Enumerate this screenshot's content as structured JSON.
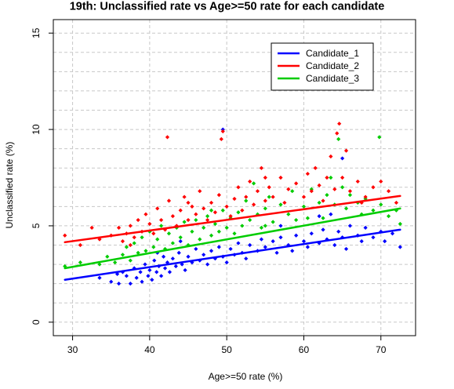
{
  "chart_data": {
    "type": "scatter",
    "title": "19th: Unclassified rate vs Age>=50 rate for each candidate",
    "xlabel": "Age>=50 rate (%)",
    "ylabel": "Unclassified rate (%)",
    "xlim": [
      27.5,
      74.5
    ],
    "ylim": [
      -0.7,
      15.7
    ],
    "x_ticks": [
      "30",
      "40",
      "50",
      "60",
      "70"
    ],
    "y_ticks": [
      "0",
      "5",
      "10",
      "15"
    ],
    "grid": true,
    "legend_position": "top-right",
    "series": [
      {
        "name": "Candidate_1",
        "color": "#0000FF",
        "fit_line": [
          [
            29,
            2.2
          ],
          [
            72.5,
            4.8
          ]
        ],
        "points": [
          [
            33.5,
            2.3
          ],
          [
            35,
            2.1
          ],
          [
            35.8,
            2.5
          ],
          [
            36,
            2.0
          ],
          [
            36.5,
            2.6
          ],
          [
            37,
            2.4
          ],
          [
            37.5,
            2.0
          ],
          [
            38,
            2.8
          ],
          [
            38.3,
            2.3
          ],
          [
            38.8,
            2.6
          ],
          [
            39,
            2.1
          ],
          [
            39.4,
            3.0
          ],
          [
            39.8,
            2.4
          ],
          [
            40,
            2.7
          ],
          [
            40.3,
            2.2
          ],
          [
            40.6,
            3.2
          ],
          [
            40.9,
            2.6
          ],
          [
            41.2,
            2.9
          ],
          [
            41.5,
            2.4
          ],
          [
            41.8,
            3.4
          ],
          [
            42,
            2.8
          ],
          [
            42.3,
            3.1
          ],
          [
            42.6,
            2.6
          ],
          [
            43,
            3.3
          ],
          [
            43.4,
            2.9
          ],
          [
            43.8,
            3.6
          ],
          [
            44.2,
            3.0
          ],
          [
            44.6,
            2.7
          ],
          [
            45,
            3.4
          ],
          [
            45.5,
            3.1
          ],
          [
            46,
            3.8
          ],
          [
            46.5,
            3.2
          ],
          [
            47,
            3.5
          ],
          [
            47.5,
            3.0
          ],
          [
            48,
            3.7
          ],
          [
            48.5,
            3.3
          ],
          [
            49,
            3.9
          ],
          [
            49.5,
            3.4
          ],
          [
            50,
            3.1
          ],
          [
            50.5,
            3.8
          ],
          [
            51,
            3.5
          ],
          [
            51.5,
            4.1
          ],
          [
            52,
            3.6
          ],
          [
            52.5,
            3.3
          ],
          [
            53,
            4.0
          ],
          [
            54,
            3.7
          ],
          [
            54.5,
            4.3
          ],
          [
            55,
            3.9
          ],
          [
            56,
            4.2
          ],
          [
            56.5,
            3.6
          ],
          [
            57,
            4.4
          ],
          [
            58,
            4.0
          ],
          [
            58.5,
            3.7
          ],
          [
            59,
            4.5
          ],
          [
            60,
            4.2
          ],
          [
            60.5,
            3.9
          ],
          [
            61,
            4.6
          ],
          [
            62,
            4.1
          ],
          [
            62.5,
            4.8
          ],
          [
            63,
            4.3
          ],
          [
            63.5,
            5.6
          ],
          [
            64,
            4.0
          ],
          [
            64.5,
            4.7
          ],
          [
            65,
            4.4
          ],
          [
            65.5,
            3.8
          ],
          [
            66,
            5.0
          ],
          [
            67,
            4.5
          ],
          [
            67.5,
            4.2
          ],
          [
            68,
            4.9
          ],
          [
            69,
            4.4
          ],
          [
            70,
            4.7
          ],
          [
            70.5,
            4.2
          ],
          [
            71.5,
            4.6
          ],
          [
            72.5,
            3.9
          ],
          [
            49.5,
            10.0
          ],
          [
            62,
            5.5
          ],
          [
            65,
            8.5
          ],
          [
            57,
            5.0
          ],
          [
            44,
            4.2
          ],
          [
            41,
            3.6
          ]
        ]
      },
      {
        "name": "Candidate_2",
        "color": "#FF0000",
        "fit_line": [
          [
            29,
            4.15
          ],
          [
            72.5,
            6.55
          ]
        ],
        "points": [
          [
            29,
            4.5
          ],
          [
            31,
            4.0
          ],
          [
            32.5,
            4.9
          ],
          [
            33.5,
            4.3
          ],
          [
            35,
            4.5
          ],
          [
            36,
            4.9
          ],
          [
            36.5,
            4.2
          ],
          [
            37,
            4.6
          ],
          [
            37.5,
            5.0
          ],
          [
            38,
            4.4
          ],
          [
            38.5,
            5.3
          ],
          [
            39,
            4.7
          ],
          [
            39.5,
            5.6
          ],
          [
            40,
            5.1
          ],
          [
            40.5,
            4.6
          ],
          [
            41,
            5.9
          ],
          [
            41.5,
            5.3
          ],
          [
            42,
            4.8
          ],
          [
            42.3,
            9.6
          ],
          [
            42.5,
            6.3
          ],
          [
            43,
            5.5
          ],
          [
            43.5,
            5.0
          ],
          [
            44,
            5.8
          ],
          [
            44.5,
            6.5
          ],
          [
            45,
            5.3
          ],
          [
            45.5,
            6.0
          ],
          [
            46,
            5.6
          ],
          [
            46.5,
            6.8
          ],
          [
            47,
            5.9
          ],
          [
            47.5,
            5.3
          ],
          [
            48,
            6.2
          ],
          [
            48.5,
            5.7
          ],
          [
            49,
            6.6
          ],
          [
            49.3,
            9.5
          ],
          [
            49.5,
            9.9
          ],
          [
            50,
            6.0
          ],
          [
            50.5,
            5.5
          ],
          [
            51,
            6.4
          ],
          [
            51.5,
            7.0
          ],
          [
            52,
            5.8
          ],
          [
            52.5,
            6.5
          ],
          [
            53,
            7.3
          ],
          [
            53.5,
            6.1
          ],
          [
            54,
            6.8
          ],
          [
            54.5,
            8.0
          ],
          [
            55,
            6.3
          ],
          [
            55.5,
            7.0
          ],
          [
            56,
            6.5
          ],
          [
            57,
            7.5
          ],
          [
            57.5,
            6.2
          ],
          [
            58,
            6.9
          ],
          [
            59,
            7.2
          ],
          [
            60,
            6.5
          ],
          [
            60.5,
            7.7
          ],
          [
            61,
            6.8
          ],
          [
            61.5,
            8.0
          ],
          [
            62,
            7.1
          ],
          [
            62.5,
            6.3
          ],
          [
            63,
            7.5
          ],
          [
            63.5,
            8.6
          ],
          [
            64,
            6.9
          ],
          [
            64.3,
            9.8
          ],
          [
            64.6,
            10.3
          ],
          [
            65,
            7.5
          ],
          [
            65.5,
            8.9
          ],
          [
            66,
            6.8
          ],
          [
            67,
            7.3
          ],
          [
            67.5,
            6.2
          ],
          [
            68,
            6.5
          ],
          [
            69,
            7.0
          ],
          [
            70,
            7.3
          ],
          [
            71,
            6.8
          ],
          [
            72,
            6.2
          ],
          [
            37.5,
            4.0
          ],
          [
            45,
            6.2
          ],
          [
            55,
            7.5
          ]
        ]
      },
      {
        "name": "Candidate_3",
        "color": "#00CC00",
        "fit_line": [
          [
            29,
            2.8
          ],
          [
            72.5,
            5.9
          ]
        ],
        "points": [
          [
            29,
            2.9
          ],
          [
            31,
            3.1
          ],
          [
            33.5,
            3.0
          ],
          [
            34.5,
            3.4
          ],
          [
            35.5,
            3.1
          ],
          [
            36.5,
            3.5
          ],
          [
            37,
            3.9
          ],
          [
            37.5,
            3.2
          ],
          [
            38,
            4.1
          ],
          [
            38.5,
            3.6
          ],
          [
            39,
            4.4
          ],
          [
            39.5,
            3.7
          ],
          [
            40,
            4.7
          ],
          [
            40.5,
            3.9
          ],
          [
            41,
            4.3
          ],
          [
            41.5,
            5.0
          ],
          [
            42,
            3.8
          ],
          [
            42.5,
            4.6
          ],
          [
            43,
            4.1
          ],
          [
            43.5,
            4.9
          ],
          [
            44,
            4.4
          ],
          [
            44.5,
            5.2
          ],
          [
            45,
            4.0
          ],
          [
            45.5,
            4.7
          ],
          [
            46,
            5.3
          ],
          [
            46.5,
            4.3
          ],
          [
            47,
            4.9
          ],
          [
            47.5,
            5.5
          ],
          [
            48,
            4.5
          ],
          [
            48.5,
            5.1
          ],
          [
            49,
            4.7
          ],
          [
            49.5,
            5.8
          ],
          [
            50,
            4.9
          ],
          [
            50.5,
            5.4
          ],
          [
            51,
            4.6
          ],
          [
            51.5,
            5.7
          ],
          [
            52,
            5.0
          ],
          [
            52.5,
            6.3
          ],
          [
            53,
            5.3
          ],
          [
            53.5,
            7.2
          ],
          [
            54,
            5.6
          ],
          [
            54.5,
            4.9
          ],
          [
            55,
            5.9
          ],
          [
            55.5,
            6.5
          ],
          [
            56,
            5.2
          ],
          [
            57,
            6.1
          ],
          [
            58,
            5.6
          ],
          [
            58.5,
            6.8
          ],
          [
            59,
            5.3
          ],
          [
            60,
            6.0
          ],
          [
            60.5,
            5.4
          ],
          [
            61,
            6.9
          ],
          [
            62,
            6.2
          ],
          [
            62.5,
            5.4
          ],
          [
            63,
            6.6
          ],
          [
            63.5,
            7.5
          ],
          [
            64,
            6.1
          ],
          [
            64.5,
            9.5
          ],
          [
            65,
            7.0
          ],
          [
            65.5,
            5.9
          ],
          [
            66,
            6.6
          ],
          [
            67,
            6.2
          ],
          [
            67.5,
            5.6
          ],
          [
            68,
            6.4
          ],
          [
            69,
            5.8
          ],
          [
            69.8,
            9.6
          ],
          [
            70,
            6.1
          ],
          [
            71,
            5.5
          ],
          [
            72,
            5.8
          ],
          [
            72.5,
            5.1
          ],
          [
            48,
            5.8
          ],
          [
            55,
            5.0
          ]
        ]
      }
    ]
  }
}
